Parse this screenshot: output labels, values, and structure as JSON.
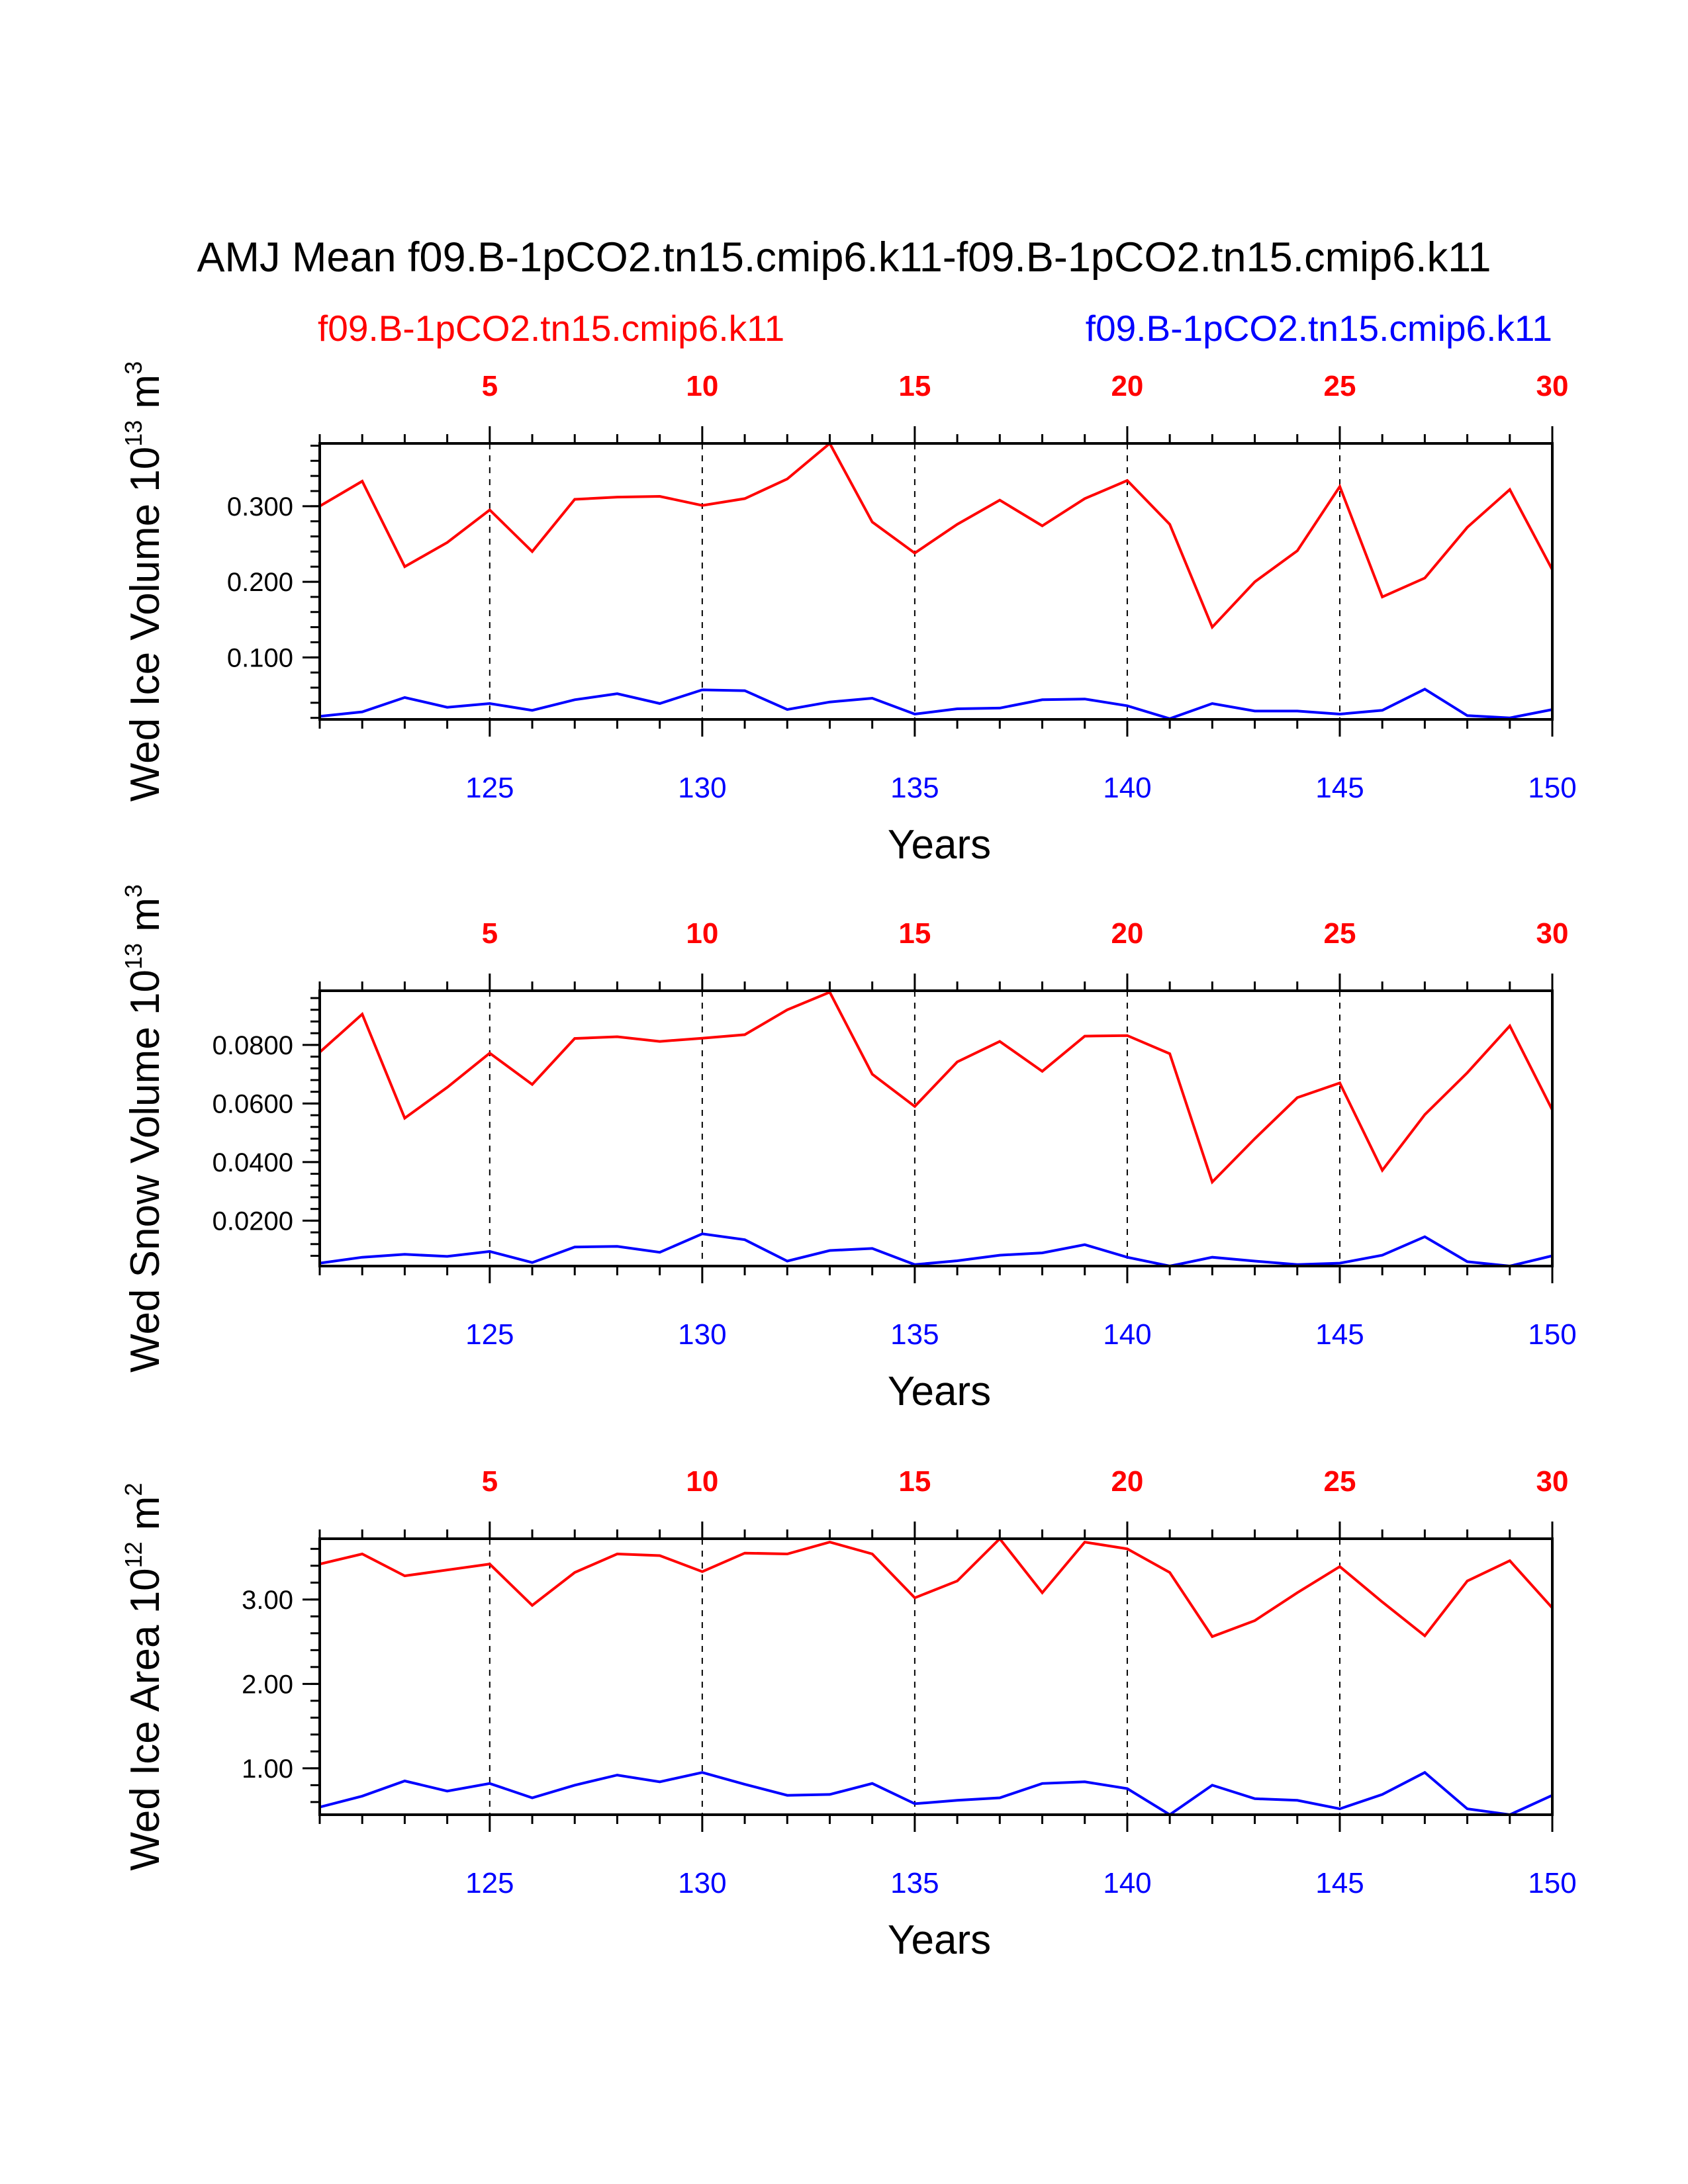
{
  "title": "AMJ Mean f09.B-1pCO2.tn15.cmip6.k11-f09.B-1pCO2.tn15.cmip6.k11",
  "legend": {
    "left": "f09.B-1pCO2.tn15.cmip6.k11",
    "right": "f09.B-1pCO2.tn15.cmip6.k11"
  },
  "colors": {
    "red": "#ff0000",
    "blue": "#0000ff",
    "axis": "#000000"
  },
  "chart_data": [
    {
      "type": "line",
      "ylabel": "Wed Ice Volume 10",
      "ylabel_exp": "13",
      "ylabel_unit": " m",
      "ylabel_unit_exp": "3",
      "xlabel": "Years",
      "top_axis_ticks": [
        "5",
        "10",
        "15",
        "20",
        "25",
        "30"
      ],
      "bottom_axis_ticks": [
        "125",
        "130",
        "135",
        "140",
        "145",
        "150"
      ],
      "y_ticks": [
        0.1,
        0.2,
        0.3
      ],
      "y_tick_labels": [
        "0.100",
        "0.200",
        "0.300"
      ],
      "ylim": [
        0.018,
        0.383
      ],
      "x": [
        121,
        122,
        123,
        124,
        125,
        126,
        127,
        128,
        129,
        130,
        131,
        132,
        133,
        134,
        135,
        136,
        137,
        138,
        139,
        140,
        141,
        142,
        143,
        144,
        145,
        146,
        147,
        148,
        149,
        150
      ],
      "series": [
        {
          "name": "f09.B-1pCO2.tn15.cmip6.k11",
          "color": "red",
          "values": [
            0.3,
            0.333,
            0.22,
            0.252,
            0.295,
            0.24,
            0.309,
            0.312,
            0.313,
            0.301,
            0.31,
            0.336,
            0.383,
            0.279,
            0.238,
            0.276,
            0.308,
            0.274,
            0.31,
            0.334,
            0.276,
            0.14,
            0.2,
            0.241,
            0.326,
            0.18,
            0.205,
            0.272,
            0.322,
            0.216
          ]
        },
        {
          "name": "f09.B-1pCO2.tn15.cmip6.k11",
          "color": "blue",
          "values": [
            0.022,
            0.028,
            0.047,
            0.034,
            0.039,
            0.03,
            0.044,
            0.052,
            0.039,
            0.057,
            0.056,
            0.031,
            0.041,
            0.046,
            0.025,
            0.032,
            0.033,
            0.044,
            0.045,
            0.036,
            0.019,
            0.039,
            0.029,
            0.029,
            0.025,
            0.03,
            0.058,
            0.023,
            0.02,
            0.031
          ]
        }
      ]
    },
    {
      "type": "line",
      "ylabel": "Wed Snow Volume 10",
      "ylabel_exp": "13",
      "ylabel_unit": " m",
      "ylabel_unit_exp": "3",
      "xlabel": "Years",
      "top_axis_ticks": [
        "5",
        "10",
        "15",
        "20",
        "25",
        "30"
      ],
      "bottom_axis_ticks": [
        "125",
        "130",
        "135",
        "140",
        "145",
        "150"
      ],
      "y_ticks": [
        0.02,
        0.04,
        0.06,
        0.08
      ],
      "y_tick_labels": [
        "0.0200",
        "0.0400",
        "0.0600",
        "0.0800"
      ],
      "ylim": [
        0.0045,
        0.0985
      ],
      "x": [
        121,
        122,
        123,
        124,
        125,
        126,
        127,
        128,
        129,
        130,
        131,
        132,
        133,
        134,
        135,
        136,
        137,
        138,
        139,
        140,
        141,
        142,
        143,
        144,
        145,
        146,
        147,
        148,
        149,
        150
      ],
      "series": [
        {
          "name": "f09.B-1pCO2.tn15.cmip6.k11",
          "color": "red",
          "values": [
            0.0775,
            0.0905,
            0.055,
            0.0655,
            0.0772,
            0.0665,
            0.0822,
            0.0828,
            0.0812,
            0.0823,
            0.0835,
            0.092,
            0.098,
            0.07,
            0.059,
            0.0742,
            0.0812,
            0.071,
            0.083,
            0.0832,
            0.077,
            0.0332,
            0.048,
            0.062,
            0.067,
            0.0372,
            0.0562,
            0.0705,
            0.0865,
            0.0578
          ]
        },
        {
          "name": "f09.B-1pCO2.tn15.cmip6.k11",
          "color": "blue",
          "values": [
            0.0055,
            0.0075,
            0.0085,
            0.0078,
            0.0095,
            0.0057,
            0.011,
            0.0112,
            0.0092,
            0.0155,
            0.0135,
            0.0062,
            0.0098,
            0.0105,
            0.005,
            0.0063,
            0.0082,
            0.009,
            0.0118,
            0.0075,
            0.0045,
            0.0075,
            0.0062,
            0.005,
            0.0055,
            0.0082,
            0.0145,
            0.006,
            0.0045,
            0.008
          ]
        }
      ]
    },
    {
      "type": "line",
      "ylabel": "Wed Ice Area 10",
      "ylabel_exp": "12",
      "ylabel_unit": " m",
      "ylabel_unit_exp": "2",
      "xlabel": "Years",
      "top_axis_ticks": [
        "5",
        "10",
        "15",
        "20",
        "25",
        "30"
      ],
      "bottom_axis_ticks": [
        "125",
        "130",
        "135",
        "140",
        "145",
        "150"
      ],
      "y_ticks": [
        1.0,
        2.0,
        3.0
      ],
      "y_tick_labels": [
        "1.00",
        "2.00",
        "3.00"
      ],
      "ylim": [
        0.45,
        3.72
      ],
      "x": [
        121,
        122,
        123,
        124,
        125,
        126,
        127,
        128,
        129,
        130,
        131,
        132,
        133,
        134,
        135,
        136,
        137,
        138,
        139,
        140,
        141,
        142,
        143,
        144,
        145,
        146,
        147,
        148,
        149,
        150
      ],
      "series": [
        {
          "name": "f09.B-1pCO2.tn15.cmip6.k11",
          "color": "red",
          "values": [
            3.42,
            3.54,
            3.28,
            3.35,
            3.42,
            2.93,
            3.32,
            3.54,
            3.52,
            3.33,
            3.55,
            3.54,
            3.68,
            3.54,
            3.02,
            3.22,
            3.72,
            3.08,
            3.68,
            3.6,
            3.32,
            2.56,
            2.75,
            3.08,
            3.39,
            2.97,
            2.57,
            3.22,
            3.46,
            2.9
          ]
        },
        {
          "name": "f09.B-1pCO2.tn15.cmip6.k11",
          "color": "blue",
          "values": [
            0.54,
            0.67,
            0.85,
            0.73,
            0.82,
            0.65,
            0.8,
            0.92,
            0.84,
            0.95,
            0.81,
            0.68,
            0.69,
            0.82,
            0.58,
            0.62,
            0.65,
            0.82,
            0.84,
            0.76,
            0.45,
            0.8,
            0.64,
            0.62,
            0.52,
            0.69,
            0.95,
            0.52,
            0.45,
            0.68
          ]
        }
      ]
    }
  ]
}
